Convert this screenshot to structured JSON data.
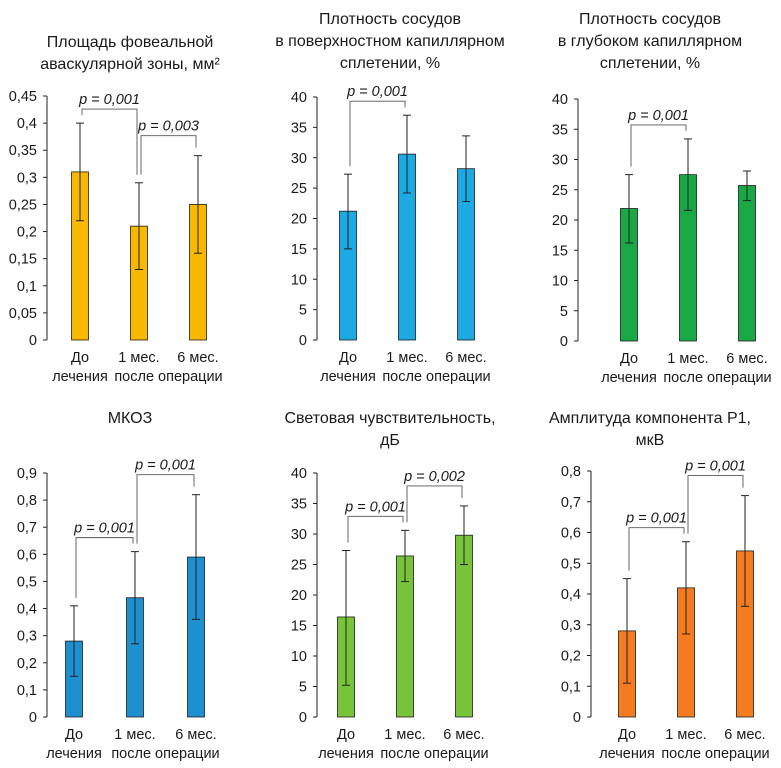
{
  "xlabels": {
    "before": [
      "До",
      "лечения"
    ],
    "after": [
      "1 мес.",
      "6 мес."
    ],
    "after_caption": "после операции"
  },
  "chart_data": [
    {
      "type": "bar",
      "title_lines": [
        "Площадь фовеальной",
        "аваскулярной зоны, мм²"
      ],
      "categories": [
        "До лечения",
        "1 мес. после операции",
        "6 мес. после операции"
      ],
      "values": [
        0.31,
        0.21,
        0.25
      ],
      "error_low": [
        0.22,
        0.13,
        0.16
      ],
      "error_high": [
        0.4,
        0.29,
        0.34
      ],
      "ylim": [
        0,
        0.45
      ],
      "yticks": [
        "0",
        "0,05",
        "0,1",
        "0,15",
        "0,2",
        "0,25",
        "0,3",
        "0,35",
        "0,4",
        "0,45"
      ],
      "color": "#f9b800",
      "annotations": [
        {
          "label": "p = 0,001",
          "from": 0,
          "to": 1
        },
        {
          "label": "p = 0,003",
          "from": 1,
          "to": 2
        }
      ]
    },
    {
      "type": "bar",
      "title_lines": [
        "Плотность сосудов",
        "в поверхностном капиллярном",
        "сплетении, %"
      ],
      "categories": [
        "До лечения",
        "1 мес. после операции",
        "6 мес. после операции"
      ],
      "values": [
        21.2,
        30.6,
        28.2
      ],
      "error_low": [
        15.0,
        24.2,
        22.8
      ],
      "error_high": [
        27.3,
        37.0,
        33.6
      ],
      "ylim": [
        0,
        40
      ],
      "yticks": [
        "0",
        "5",
        "10",
        "15",
        "20",
        "25",
        "30",
        "35",
        "40"
      ],
      "color": "#1da9e1",
      "annotations": [
        {
          "label": "p = 0,001",
          "from": 0,
          "to": 1
        }
      ]
    },
    {
      "type": "bar",
      "title_lines": [
        "Плотность сосудов",
        "в глубоком капиллярном",
        "сплетении, %"
      ],
      "categories": [
        "До лечения",
        "1 мес. после операции",
        "6 мес. после операции"
      ],
      "values": [
        21.9,
        27.5,
        25.7
      ],
      "error_low": [
        16.2,
        21.6,
        23.2
      ],
      "error_high": [
        27.5,
        33.4,
        28.1
      ],
      "ylim": [
        0,
        40
      ],
      "yticks": [
        "0",
        "5",
        "10",
        "15",
        "20",
        "25",
        "30",
        "35",
        "40"
      ],
      "color": "#1aa845",
      "annotations": [
        {
          "label": "p = 0,001",
          "from": 0,
          "to": 1
        }
      ]
    },
    {
      "type": "bar",
      "title_lines": [
        "МКОЗ"
      ],
      "categories": [
        "До лечения",
        "1 мес. после операции",
        "6 мес. после операции"
      ],
      "values": [
        0.28,
        0.44,
        0.59
      ],
      "error_low": [
        0.15,
        0.27,
        0.36
      ],
      "error_high": [
        0.41,
        0.61,
        0.82
      ],
      "ylim": [
        0,
        0.9
      ],
      "yticks": [
        "0",
        "0,1",
        "0,2",
        "0,3",
        "0,4",
        "0,5",
        "0,6",
        "0,7",
        "0,8",
        "0,9"
      ],
      "color": "#1e90d0",
      "annotations": [
        {
          "label": "p = 0,001",
          "from": 0,
          "to": 1
        },
        {
          "label": "p = 0,001",
          "from": 1,
          "to": 2
        }
      ]
    },
    {
      "type": "bar",
      "title_lines": [
        "Световая чувствительность,",
        "дБ"
      ],
      "categories": [
        "До лечения",
        "1 мес. после операции",
        "6 мес. после операции"
      ],
      "values": [
        16.4,
        26.4,
        29.8
      ],
      "error_low": [
        5.2,
        22.2,
        25.0
      ],
      "error_high": [
        27.3,
        30.6,
        34.6
      ],
      "ylim": [
        0,
        40
      ],
      "yticks": [
        "0",
        "5",
        "10",
        "15",
        "20",
        "25",
        "30",
        "35",
        "40"
      ],
      "color": "#77c43b",
      "annotations": [
        {
          "label": "p = 0,001",
          "from": 0,
          "to": 1
        },
        {
          "label": "p = 0,002",
          "from": 1,
          "to": 2
        }
      ]
    },
    {
      "type": "bar",
      "title_lines": [
        "Амплитуда компонента Р1,",
        "мкВ"
      ],
      "categories": [
        "До лечения",
        "1 мес. после операции",
        "6 мес. после операции"
      ],
      "values": [
        0.28,
        0.42,
        0.54
      ],
      "error_low": [
        0.11,
        0.27,
        0.36
      ],
      "error_high": [
        0.45,
        0.57,
        0.72
      ],
      "ylim": [
        0,
        0.8
      ],
      "yticks": [
        "0",
        "0,1",
        "0,2",
        "0,3",
        "0,4",
        "0,5",
        "0,6",
        "0,7",
        "0,8"
      ],
      "color": "#f47b20",
      "annotations": [
        {
          "label": "p = 0,001",
          "from": 0,
          "to": 1
        },
        {
          "label": "p = 0,001",
          "from": 1,
          "to": 2
        }
      ]
    }
  ]
}
